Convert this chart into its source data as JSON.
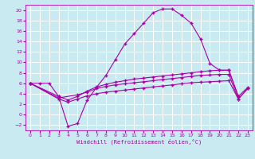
{
  "background_color": "#c8eaf0",
  "grid_color": "#ffffff",
  "line_color": "#aa00aa",
  "xlabel": "Windchill (Refroidissement éolien,°C)",
  "xlim": [
    -0.5,
    23.5
  ],
  "ylim": [
    -3,
    21
  ],
  "yticks": [
    -2,
    0,
    2,
    4,
    6,
    8,
    10,
    12,
    14,
    16,
    18,
    20
  ],
  "xticks": [
    0,
    1,
    2,
    3,
    4,
    5,
    6,
    7,
    8,
    9,
    10,
    11,
    12,
    13,
    14,
    15,
    16,
    17,
    18,
    19,
    20,
    21,
    22,
    23
  ],
  "line1_x": [
    0,
    1,
    2,
    3,
    4,
    5,
    6,
    7,
    8,
    9,
    10,
    11,
    12,
    13,
    14,
    15,
    16,
    17,
    18,
    19,
    20,
    21,
    22
  ],
  "line1_y": [
    6,
    6,
    6,
    3.5,
    -2.2,
    -1.7,
    2.7,
    5.2,
    7.5,
    10.5,
    13.5,
    15.5,
    17.5,
    19.5,
    20.2,
    20.2,
    19,
    17.5,
    14.5,
    9.8,
    8.5,
    8.5,
    3.5
  ],
  "line2_x": [
    0,
    3,
    4,
    5,
    6,
    7,
    8,
    9,
    10,
    11,
    12,
    13,
    14,
    15,
    16,
    17,
    18,
    19,
    20,
    21,
    22,
    23
  ],
  "line2_y": [
    6,
    3.5,
    2.8,
    3.5,
    4.5,
    5.3,
    5.8,
    6.2,
    6.5,
    6.8,
    7.0,
    7.2,
    7.4,
    7.6,
    7.8,
    8.0,
    8.2,
    8.4,
    8.5,
    8.5,
    3.5,
    5.2
  ],
  "line3_x": [
    0,
    3,
    5,
    6,
    7,
    8,
    9,
    10,
    11,
    12,
    13,
    14,
    15,
    16,
    17,
    18,
    19,
    20,
    21,
    22,
    23
  ],
  "line3_y": [
    6,
    3.2,
    3.8,
    4.3,
    5.0,
    5.4,
    5.7,
    5.9,
    6.1,
    6.3,
    6.5,
    6.7,
    6.9,
    7.1,
    7.3,
    7.5,
    7.6,
    7.7,
    7.7,
    3.0,
    5.0
  ],
  "line4_x": [
    0,
    3,
    4,
    5,
    6,
    7,
    8,
    9,
    10,
    11,
    12,
    13,
    14,
    15,
    16,
    17,
    18,
    19,
    20,
    21,
    22,
    23
  ],
  "line4_y": [
    6,
    3.0,
    2.4,
    3.0,
    3.6,
    4.0,
    4.3,
    4.5,
    4.7,
    4.9,
    5.1,
    5.3,
    5.5,
    5.7,
    5.9,
    6.1,
    6.2,
    6.3,
    6.4,
    6.5,
    3.0,
    5.0
  ]
}
